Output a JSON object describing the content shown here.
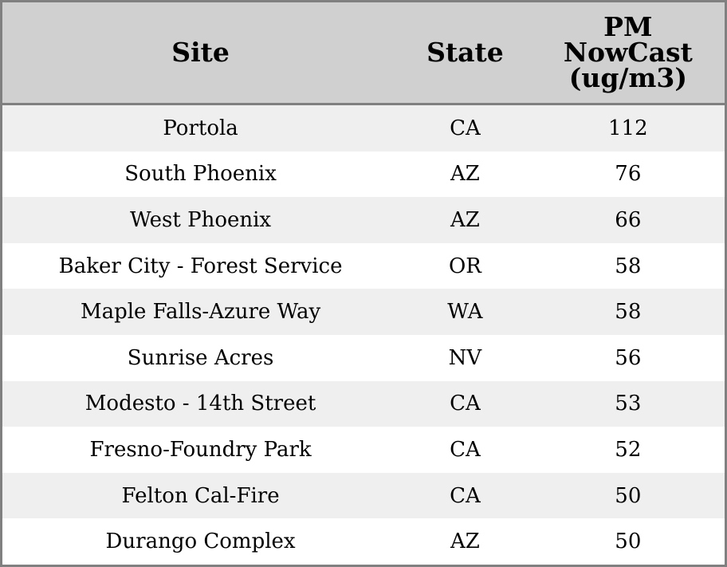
{
  "table": {
    "header": [
      "Site",
      "State",
      "PM NowCast (ug/m3)"
    ],
    "rows": [
      [
        "Portola",
        "CA",
        112
      ],
      [
        "South Phoenix",
        "AZ",
        76
      ],
      [
        "West Phoenix",
        "AZ",
        66
      ],
      [
        "Baker City - Forest Service",
        "OR",
        58
      ],
      [
        "Maple Falls-Azure Way",
        "WA",
        58
      ],
      [
        "Sunrise Acres",
        "NV",
        56
      ],
      [
        "Modesto - 14th Street",
        "CA",
        53
      ],
      [
        "Fresno-Foundry Park",
        "CA",
        52
      ],
      [
        "Felton Cal-Fire",
        "CA",
        50
      ],
      [
        "Durango Complex",
        "AZ",
        50
      ]
    ]
  }
}
